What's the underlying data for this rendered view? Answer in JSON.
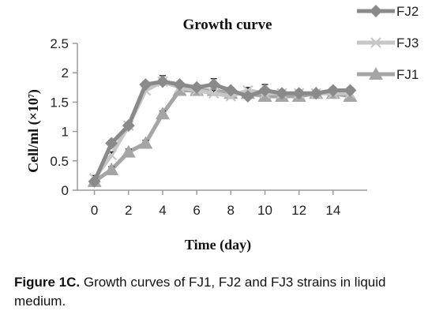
{
  "chart_data": {
    "type": "line",
    "title": "Growth curve",
    "xlabel": "Time (day)",
    "ylabel_main": "Cell/ml (×10",
    "ylabel_exp": "7",
    "ylabel_close": ")",
    "xlim": [
      -1,
      16
    ],
    "ylim": [
      0,
      2.5
    ],
    "x_ticks": [
      0,
      2,
      4,
      6,
      8,
      10,
      12,
      14
    ],
    "y_ticks": [
      0,
      0.5,
      1,
      1.5,
      2,
      2.5
    ],
    "x_tick_labels": [
      "0",
      "2",
      "4",
      "6",
      "8",
      "10",
      "12",
      "14"
    ],
    "y_tick_labels": [
      "0",
      "0.5",
      "1",
      "1.5",
      "2",
      "2.5"
    ],
    "x": [
      0,
      1,
      2,
      3,
      4,
      5,
      6,
      7,
      8,
      9,
      10,
      11,
      12,
      13,
      14,
      15
    ],
    "legend_position": "top-right",
    "series": [
      {
        "name": "FJ2",
        "color": "#8a8a8a",
        "marker": "diamond",
        "values": [
          0.15,
          0.8,
          1.1,
          1.8,
          1.85,
          1.8,
          1.75,
          1.8,
          1.7,
          1.6,
          1.7,
          1.65,
          1.65,
          1.65,
          1.7,
          1.7
        ],
        "error": [
          0.05,
          0.05,
          0.05,
          0.05,
          0.1,
          0.05,
          0.05,
          0.1,
          0.05,
          0.05,
          0.1,
          0.05,
          0.05,
          0.05,
          0.05,
          0.05
        ]
      },
      {
        "name": "FJ3",
        "color": "#c6c6c6",
        "marker": "x",
        "values": [
          0.2,
          0.6,
          1.1,
          1.7,
          1.85,
          1.75,
          1.7,
          1.65,
          1.6,
          1.7,
          1.65,
          1.65,
          1.65,
          1.65,
          1.65,
          1.65
        ],
        "error": [
          0.05,
          0.05,
          0.05,
          0.05,
          0.05,
          0.05,
          0.05,
          0.05,
          0.05,
          0.05,
          0.05,
          0.05,
          0.05,
          0.05,
          0.05,
          0.05
        ]
      },
      {
        "name": "FJ1",
        "color": "#a5a5a5",
        "marker": "triangle",
        "values": [
          0.15,
          0.35,
          0.65,
          0.8,
          1.3,
          1.7,
          1.7,
          1.7,
          1.65,
          1.65,
          1.6,
          1.6,
          1.6,
          1.65,
          1.65,
          1.6
        ],
        "error": [
          0.05,
          0.05,
          0.05,
          0.05,
          0.05,
          0.05,
          0.05,
          0.1,
          0.05,
          0.05,
          0.05,
          0.05,
          0.05,
          0.05,
          0.05,
          0.05
        ]
      }
    ]
  },
  "caption": {
    "label": "Figure 1C.",
    "text": " Growth curves of FJ1, FJ2 and FJ3 strains in liquid medium."
  }
}
